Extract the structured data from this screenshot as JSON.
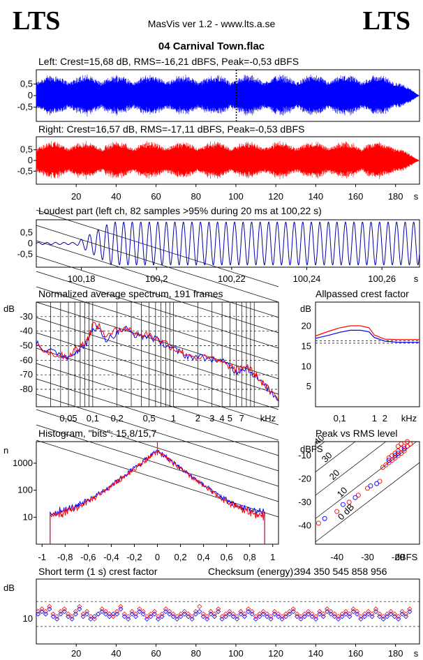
{
  "header": {
    "logo_left": "LTS",
    "logo_right": "LTS",
    "app": "MasVis ver 1.2 - www.lts.a.se",
    "file": "04 Carnival Town.flac"
  },
  "colors": {
    "left": "#0000ff",
    "right": "#ff0000",
    "axis": "#000000"
  },
  "chart_data": [
    {
      "id": "left-waveform",
      "type": "area",
      "title": "Left: Crest=15,68 dB, RMS=-16,21 dBFS, Peak=-0,53 dBFS",
      "yticks": [
        "0,5",
        "0",
        "-0,5"
      ],
      "ylim": [
        -1,
        1
      ],
      "xlim": [
        0,
        192
      ],
      "unit": "s",
      "marker_x": 100.22,
      "series": [
        {
          "color": "#0000ff",
          "peak_amplitude": 0.94
        }
      ]
    },
    {
      "id": "right-waveform",
      "type": "area",
      "title": "Right: Crest=16,57 dB, RMS=-17,11 dBFS, Peak=-0,53 dBFS",
      "yticks": [
        "0,5",
        "0",
        "-0,5"
      ],
      "xticks": [
        "20",
        "40",
        "60",
        "80",
        "100",
        "120",
        "140",
        "160",
        "180"
      ],
      "xunit": "s",
      "ylim": [
        -1,
        1
      ],
      "xlim": [
        0,
        192
      ],
      "series": [
        {
          "color": "#ff0000",
          "peak_amplitude": 0.94
        }
      ]
    },
    {
      "id": "loudest-part",
      "type": "line",
      "title": "Loudest part (left  ch, 82 samples >95% during 20 ms at 100,22 s)",
      "yticks": [
        "0,5",
        "0",
        "-0,5"
      ],
      "xticks": [
        "100,18",
        "100,2",
        "100,22",
        "100,24",
        "100,26"
      ],
      "xunit": "s",
      "xlim": [
        100.168,
        100.27
      ],
      "ylim": [
        -1,
        1
      ],
      "cycle_s": 0.00227,
      "series": [
        {
          "color": "#0000aa"
        }
      ]
    },
    {
      "id": "spectrum",
      "type": "line",
      "title": "Normalized average spectrum, 191 frames",
      "ylabel": "dB",
      "yticks": [
        "-30",
        "-40",
        "-50",
        "-60",
        "-70",
        "-80"
      ],
      "xticks": [
        "0,05",
        "0,1",
        "0,2",
        "0,5",
        "1",
        "2",
        "3",
        "4",
        "5",
        "7"
      ],
      "xunit": "kHz",
      "ylim": [
        -92,
        -20
      ],
      "xlim_khz": [
        0.02,
        20
      ],
      "series": [
        {
          "name": "",
          "color": "#0000ff",
          "freq_khz": [
            0.02,
            0.025,
            0.03,
            0.04,
            0.05,
            0.06,
            0.07,
            0.08,
            0.09,
            0.1,
            0.12,
            0.15,
            0.2,
            0.25,
            0.3,
            0.4,
            0.5,
            0.6,
            0.8,
            1,
            1.2,
            1.5,
            2,
            3,
            4,
            5,
            6,
            7,
            8,
            10,
            12,
            15,
            20
          ],
          "db": [
            -47,
            -53,
            -54,
            -56,
            -58,
            -54,
            -52,
            -49,
            -46,
            -37,
            -39,
            -46,
            -41,
            -38,
            -41,
            -44,
            -43,
            -46,
            -49,
            -52,
            -55,
            -57,
            -58,
            -59,
            -61,
            -64,
            -68,
            -66,
            -65,
            -70,
            -75,
            -80,
            -88
          ]
        },
        {
          "name": "",
          "color": "#ff0000",
          "freq_khz": [
            0.02,
            0.025,
            0.03,
            0.04,
            0.05,
            0.06,
            0.07,
            0.08,
            0.09,
            0.1,
            0.12,
            0.15,
            0.2,
            0.25,
            0.3,
            0.4,
            0.5,
            0.6,
            0.8,
            1,
            1.2,
            1.5,
            2,
            3,
            4,
            5,
            6,
            7,
            8,
            10,
            12,
            15,
            20
          ],
          "db": [
            -48,
            -53,
            -55,
            -57,
            -57,
            -53,
            -51,
            -47,
            -44,
            -35,
            -37,
            -44,
            -39,
            -37,
            -40,
            -43,
            -42,
            -45,
            -48,
            -52,
            -54,
            -56,
            -58,
            -59,
            -62,
            -64,
            -67,
            -65,
            -64,
            -69,
            -74,
            -80,
            -88
          ]
        }
      ]
    },
    {
      "id": "allpassed-crest",
      "type": "line",
      "title": "Allpassed crest factor",
      "ylabel": "dB",
      "yticks": [
        "20",
        "15",
        "10",
        "5"
      ],
      "xticks": [
        "0,1",
        "1",
        "2",
        "kHz"
      ],
      "ylim": [
        0,
        26
      ],
      "xlim_khz": [
        0.02,
        20
      ],
      "series": [
        {
          "name": "",
          "color": "#0000ff",
          "freq_khz": [
            0.02,
            0.05,
            0.1,
            0.2,
            0.4,
            0.7,
            1,
            2,
            5,
            20
          ],
          "db": [
            17,
            17.8,
            18.5,
            19,
            19,
            18.6,
            17.2,
            16.3,
            16,
            16
          ]
        },
        {
          "name": "",
          "color": "#ff0000",
          "freq_khz": [
            0.02,
            0.05,
            0.1,
            0.2,
            0.4,
            0.7,
            1,
            2,
            5,
            20
          ],
          "db": [
            17.6,
            18.8,
            19.6,
            20.1,
            20.1,
            19.6,
            17.8,
            16.8,
            16.7,
            16.7
          ]
        }
      ],
      "reference_lines_db": [
        16.4,
        15.8
      ]
    },
    {
      "id": "histogram",
      "type": "line",
      "title": "Histogram, \"bits\": 15,8/15,7",
      "ylabel": "n",
      "yticks": [
        "1000",
        "100",
        "10"
      ],
      "xticks": [
        "-1",
        "-0,8",
        "-0,6",
        "-0,4",
        "-0,2",
        "0",
        "0,2",
        "0,4",
        "0,6",
        "0,8",
        "1"
      ],
      "xlim": [
        -1.05,
        1.05
      ],
      "ylog": true,
      "series": [
        {
          "name": "",
          "color": "#0000ff",
          "peak_count": 3000,
          "edge_count": 8
        },
        {
          "name": "",
          "color": "#ff0000",
          "peak_count": 2800,
          "edge_count": 6
        }
      ]
    },
    {
      "id": "peak-vs-rms",
      "type": "scatter",
      "title": "Peak vs RMS level",
      "ylabel": "dBFS",
      "xlabel": "dBFS",
      "yticks": [
        "-10",
        "-20",
        "-30",
        "-40"
      ],
      "xticks": [
        "-40",
        "-30",
        "-20"
      ],
      "diag_labels": [
        "40",
        "30",
        "20",
        "10",
        "0 dB"
      ],
      "xlim": [
        -47,
        -13
      ],
      "ylim": [
        -48,
        -4
      ],
      "series": [
        {
          "name": "",
          "color": "#ff0000",
          "points": [
            [
              -46,
              -39
            ],
            [
              -40,
              -34
            ],
            [
              -36,
              -30
            ],
            [
              -33,
              -27
            ],
            [
              -30,
              -24
            ],
            [
              -26,
              -21
            ],
            [
              -25,
              -15
            ],
            [
              -24,
              -14
            ],
            [
              -23,
              -13
            ],
            [
              -22,
              -12
            ],
            [
              -21,
              -11
            ],
            [
              -21,
              -9
            ],
            [
              -20,
              -10
            ],
            [
              -20,
              -8
            ],
            [
              -19,
              -9
            ],
            [
              -19,
              -7
            ],
            [
              -18,
              -8
            ],
            [
              -18,
              -6
            ],
            [
              -17,
              -6
            ],
            [
              -16,
              -5
            ],
            [
              -22,
              -10
            ],
            [
              -23,
              -11
            ],
            [
              -20,
              -6
            ],
            [
              -19,
              -5
            ],
            [
              -17,
              -4
            ]
          ]
        },
        {
          "name": "",
          "color": "#0000ff",
          "points": [
            [
              -44,
              -37
            ],
            [
              -38,
              -31
            ],
            [
              -34,
              -28
            ],
            [
              -29,
              -23
            ],
            [
              -27,
              -22
            ],
            [
              -23,
              -12
            ],
            [
              -21,
              -10
            ],
            [
              -20,
              -9
            ],
            [
              -18,
              -7
            ]
          ]
        }
      ]
    },
    {
      "id": "short-term-crest",
      "type": "scatter",
      "title": "Short term (1 s) crest factor",
      "ylabel": "dB",
      "yticks": [
        "10"
      ],
      "xticks": [
        "20",
        "40",
        "60",
        "80",
        "100",
        "120",
        "140",
        "160",
        "180"
      ],
      "xunit": "s",
      "xlim": [
        0,
        192
      ],
      "ylim": [
        0,
        26
      ],
      "reference_lines_db": [
        17,
        7
      ],
      "series": [
        {
          "name": "",
          "color": "#ff0000",
          "values": [
            13,
            14,
            13,
            15,
            12,
            11,
            13,
            14,
            12,
            11,
            13,
            15,
            12,
            13,
            11,
            10,
            12,
            14,
            13,
            12,
            11,
            13,
            15,
            12,
            11,
            13,
            12,
            14,
            13,
            11,
            12,
            13,
            11,
            12,
            14,
            13,
            12,
            11,
            12,
            13,
            12,
            11,
            13,
            15,
            12,
            11,
            13,
            12,
            14,
            11,
            12,
            13,
            12,
            11,
            13,
            12,
            14,
            13,
            11,
            12,
            13,
            12,
            11,
            13,
            12,
            11,
            12,
            13,
            14,
            12,
            11,
            12,
            13,
            12,
            11,
            13,
            12,
            14,
            13,
            12,
            11,
            12,
            13,
            12,
            14,
            13,
            11,
            12,
            13,
            12,
            14,
            12,
            11,
            12,
            13,
            12,
            11,
            13,
            12,
            14
          ]
        },
        {
          "name": "",
          "color": "#0000ff",
          "values": [
            12,
            13,
            12,
            14,
            11,
            10,
            12,
            13,
            11,
            10,
            12,
            14,
            11,
            12,
            10,
            11,
            12,
            13,
            12,
            11,
            12,
            12,
            14,
            11,
            10,
            12,
            11,
            13,
            12,
            10,
            11,
            12,
            10,
            11,
            13,
            12,
            11,
            10,
            11,
            12,
            11,
            10,
            12,
            13,
            11,
            10,
            12,
            11,
            13,
            10,
            11,
            12,
            11,
            10,
            12,
            11,
            13,
            12,
            10,
            11,
            12,
            11,
            10,
            12,
            11,
            10,
            11,
            12,
            13,
            11,
            10,
            11,
            12,
            11,
            10,
            12,
            11,
            13,
            12,
            11,
            10,
            11,
            12,
            11,
            13,
            12,
            10,
            11,
            12,
            11,
            13,
            11,
            10,
            11,
            12,
            11,
            10,
            12,
            11,
            13
          ]
        }
      ]
    }
  ],
  "checksum": {
    "label": "Checksum (energy):",
    "value": "394 350 545 858 956"
  }
}
